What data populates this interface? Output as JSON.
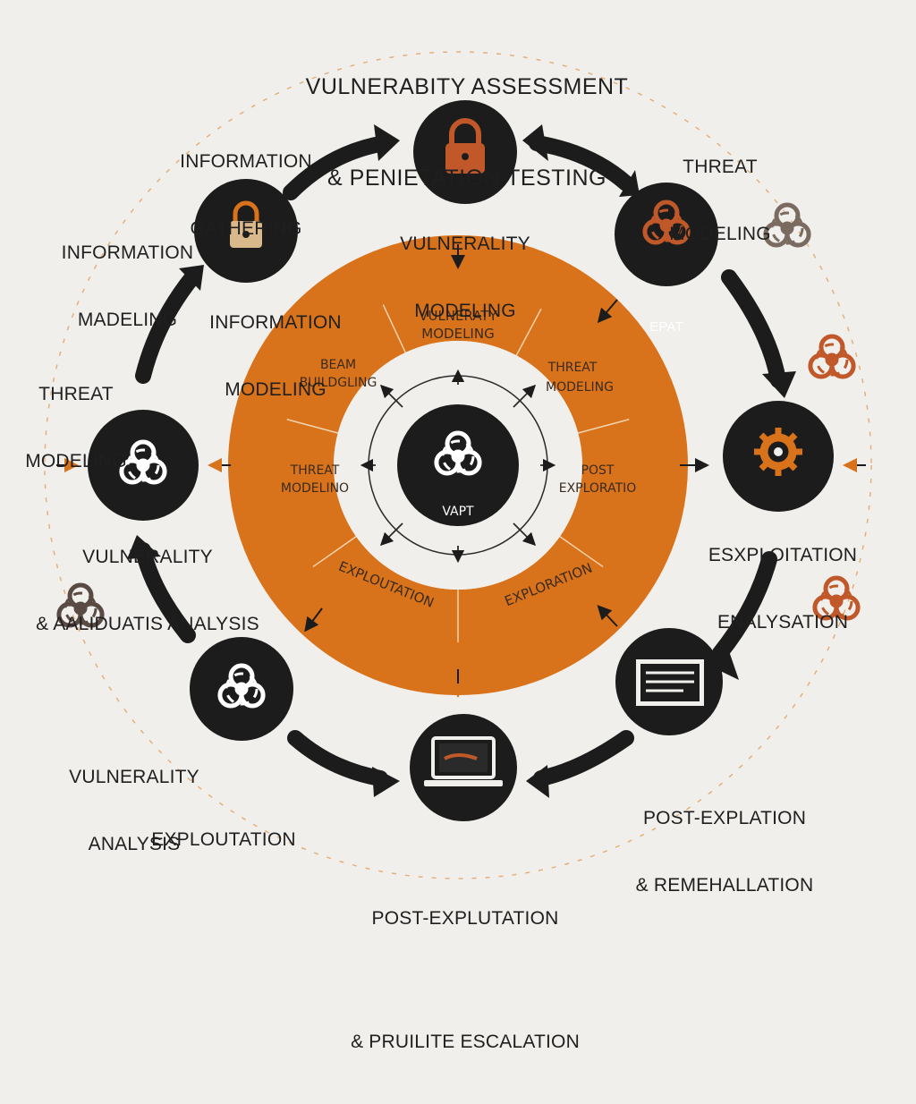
{
  "title": {
    "line1": "VULNERABITY ASSESSMENT",
    "line2": "& PENIETATION TESTING"
  },
  "colors": {
    "dark": "#1c1c1c",
    "orange": "#d9731b",
    "background": "#f1efec",
    "orange_icon": "#c0582a"
  },
  "center": {
    "label": "VAPT",
    "icon": "biohazard-icon"
  },
  "ring_segments": [
    {
      "line1": "VULNERATY",
      "line2": "MODELING"
    },
    {
      "line1": "THREAT",
      "line2": "MODELING"
    },
    {
      "line1": "POST",
      "line2": "EXPLORATIO"
    },
    {
      "line1": "EXPLORATION",
      "line2": ""
    },
    {
      "line1": "EXPLOUTATION",
      "line2": ""
    },
    {
      "line1": "THREAT",
      "line2": "MODELINO"
    },
    {
      "line1": "BEAM",
      "line2": "BUILDGLING"
    }
  ],
  "nodes": [
    {
      "id": "top",
      "icon": "padlock-icon",
      "label1": "VULNERALITY",
      "label2": "MODELING"
    },
    {
      "id": "upper-right",
      "icon": "biohazard-icon",
      "label1": "EPAT",
      "label2": ""
    },
    {
      "id": "right",
      "icon": "gear-icon",
      "label1": "",
      "label2": ""
    },
    {
      "id": "lower-right",
      "icon": "document-icon",
      "label1": "",
      "label2": ""
    },
    {
      "id": "bottom",
      "icon": "laptop-icon",
      "label1": "",
      "label2": ""
    },
    {
      "id": "lower-left",
      "icon": "biohazard-icon",
      "label1": "",
      "label2": ""
    },
    {
      "id": "left",
      "icon": "biohazard-icon",
      "label1": "",
      "label2": ""
    },
    {
      "id": "upper-left",
      "icon": "padlock-icon",
      "label1": "",
      "label2": ""
    }
  ],
  "labels": {
    "info_gathering": [
      "INFORMATION",
      "GATHERING"
    ],
    "threat_modeling_tr": [
      "THREAT",
      "MODELING"
    ],
    "info_modeling_left": [
      "INFORMATION",
      "MADELING"
    ],
    "info_modeling_inner": [
      "INFORMATION",
      "MODELING"
    ],
    "threat_modeling_left": [
      "THREAT",
      "MODELING"
    ],
    "vuln_analysis_left": [
      "VULNERALITY",
      "& AALIDUATIS ANALYSIS"
    ],
    "exploitation_right": [
      "ESXPLOITATION",
      "ENALYSATION"
    ],
    "vuln_analysis_bl": [
      "VULNERALITY",
      "ANALYSIS"
    ],
    "exploitation_bl": [
      "EXPLOUTATION"
    ],
    "post_exploitation_br": [
      "POST-EXPLATION",
      "& REMEHALLATION"
    ],
    "post_exploitation_bottom": [
      "POST-EXPLUTATION",
      "& PRUILITE ESCALATION"
    ]
  }
}
